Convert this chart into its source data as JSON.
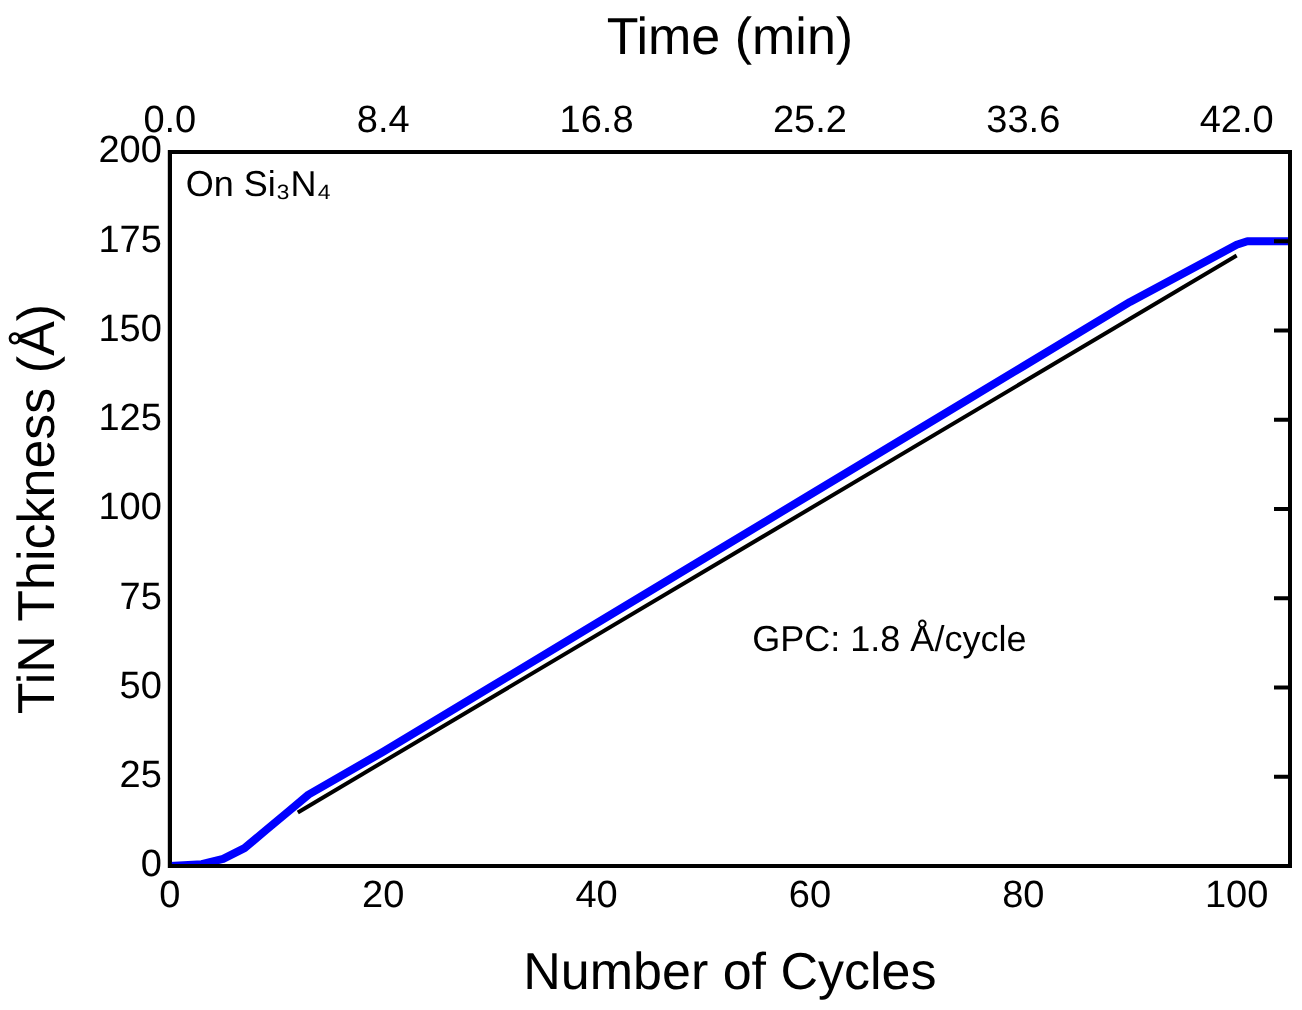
{
  "chart_data": {
    "type": "line",
    "xlabel": "Number of Cycles",
    "ylabel": "TiN Thickness (Å)",
    "x2label": "Time (min)",
    "xlim": [
      0,
      105
    ],
    "xticks": [
      0,
      20,
      40,
      60,
      80,
      100
    ],
    "ylim": [
      0,
      200
    ],
    "yticks": [
      0,
      25,
      50,
      75,
      100,
      125,
      150,
      175,
      200
    ],
    "x2lim": [
      0,
      44.1
    ],
    "x2ticks": [
      {
        "value": 0,
        "label": "0.0"
      },
      8.4,
      16.8,
      25.2,
      33.6,
      {
        "value": 42,
        "label": "42.0"
      }
    ],
    "grid": false,
    "legend": false,
    "marker": "none",
    "line_style": "solid",
    "series": [
      {
        "color": "#0000ff",
        "x": [
          0,
          3,
          5,
          7,
          9,
          11,
          13,
          20,
          30,
          40,
          50,
          60,
          70,
          80,
          90,
          100,
          101,
          105
        ],
        "values": [
          0,
          0.5,
          2,
          5,
          10,
          15,
          20,
          32,
          50,
          68,
          86,
          104,
          122,
          140,
          158,
          174,
          175,
          175
        ]
      },
      {
        "color": "#000000",
        "x": [
          12,
          100
        ],
        "values": [
          15,
          171
        ]
      }
    ],
    "annotations": [
      "On Si₃N₄",
      "GPC: 1.8 Å/cycle"
    ]
  }
}
